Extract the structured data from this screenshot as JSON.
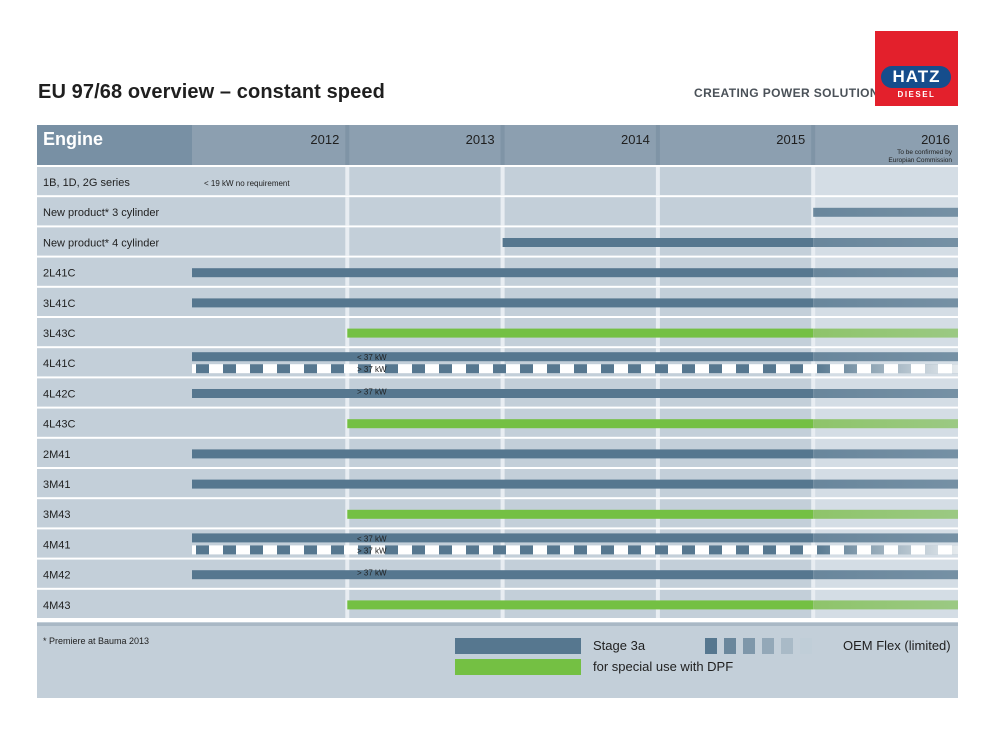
{
  "header": {
    "title": "EU 97/68 overview – constant speed",
    "tagline": "CREATING POWER SOLUTIONS.",
    "logo_text": "HATZ",
    "logo_sub": "DIESEL"
  },
  "colors": {
    "header_bg": "#8c9fb0",
    "header_label_bg": "#7890a4",
    "row_label_bg": "#c3cfd9",
    "cell_bg": "#c3cfd9",
    "separator": "#e8edf2",
    "stage3a": "#56778f",
    "dpf": "#74c043",
    "future_shade": "#d4dde5",
    "logo_red": "#e3202c",
    "logo_blue": "#164d8c"
  },
  "chart_data": {
    "type": "gantt",
    "header_label": "Engine",
    "years": [
      "2012",
      "2013",
      "2014",
      "2015",
      "2016"
    ],
    "year_note": "To be confirmed by Europian Commission",
    "rows": [
      {
        "engine": "1B, 1D, 2G series",
        "bars": [],
        "notes": [
          {
            "text": "< 19 kW no requirement",
            "at": 2012
          }
        ]
      },
      {
        "engine": "New product* 3 cylinder",
        "bars": [
          {
            "kind": "stage3a",
            "start": 2016,
            "end": 2017
          }
        ]
      },
      {
        "engine": "New product* 4 cylinder",
        "bars": [
          {
            "kind": "stage3a",
            "start": 2014,
            "end": 2017
          }
        ]
      },
      {
        "engine": "2L41C",
        "bars": [
          {
            "kind": "stage3a",
            "start": 2012,
            "end": 2017
          }
        ]
      },
      {
        "engine": "3L41C",
        "bars": [
          {
            "kind": "stage3a",
            "start": 2012,
            "end": 2017
          }
        ]
      },
      {
        "engine": "3L43C",
        "bars": [
          {
            "kind": "dpf",
            "start": 2013,
            "end": 2017
          }
        ]
      },
      {
        "engine": "4L41C",
        "bars": [
          {
            "kind": "stage3a",
            "start": 2012,
            "end": 2017,
            "lane": "top"
          },
          {
            "kind": "oem_flex",
            "start": 2012,
            "end": 2017,
            "lane": "bottom"
          }
        ],
        "notes": [
          {
            "text": "< 37 kW",
            "lane": "top"
          },
          {
            "text": "> 37 kW",
            "lane": "bottom"
          }
        ]
      },
      {
        "engine": "4L42C",
        "bars": [
          {
            "kind": "stage3a",
            "start": 2012,
            "end": 2017
          }
        ],
        "notes": [
          {
            "text": "> 37 kW",
            "lane": "above"
          }
        ]
      },
      {
        "engine": "4L43C",
        "bars": [
          {
            "kind": "dpf",
            "start": 2013,
            "end": 2017
          }
        ]
      },
      {
        "engine": "2M41",
        "bars": [
          {
            "kind": "stage3a",
            "start": 2012,
            "end": 2017
          }
        ]
      },
      {
        "engine": "3M41",
        "bars": [
          {
            "kind": "stage3a",
            "start": 2012,
            "end": 2017
          }
        ]
      },
      {
        "engine": "3M43",
        "bars": [
          {
            "kind": "dpf",
            "start": 2013,
            "end": 2017
          }
        ]
      },
      {
        "engine": "4M41",
        "bars": [
          {
            "kind": "stage3a",
            "start": 2012,
            "end": 2017,
            "lane": "top"
          },
          {
            "kind": "oem_flex",
            "start": 2012,
            "end": 2017,
            "lane": "bottom"
          }
        ],
        "notes": [
          {
            "text": "< 37 kW",
            "lane": "top"
          },
          {
            "text": "> 37 kW",
            "lane": "bottom"
          }
        ]
      },
      {
        "engine": "4M42",
        "bars": [
          {
            "kind": "stage3a",
            "start": 2012,
            "end": 2017
          }
        ],
        "notes": [
          {
            "text": "> 37 kW",
            "lane": "above"
          }
        ]
      },
      {
        "engine": "4M43",
        "bars": [
          {
            "kind": "dpf",
            "start": 2013,
            "end": 2017
          }
        ]
      }
    ],
    "legend": [
      {
        "kind": "stage3a",
        "label": "Stage 3a"
      },
      {
        "kind": "dpf",
        "label": "for special use with DPF"
      },
      {
        "kind": "oem_flex",
        "label": "OEM Flex (limited)"
      }
    ],
    "footnote": "* Premiere at Bauma 2013"
  }
}
